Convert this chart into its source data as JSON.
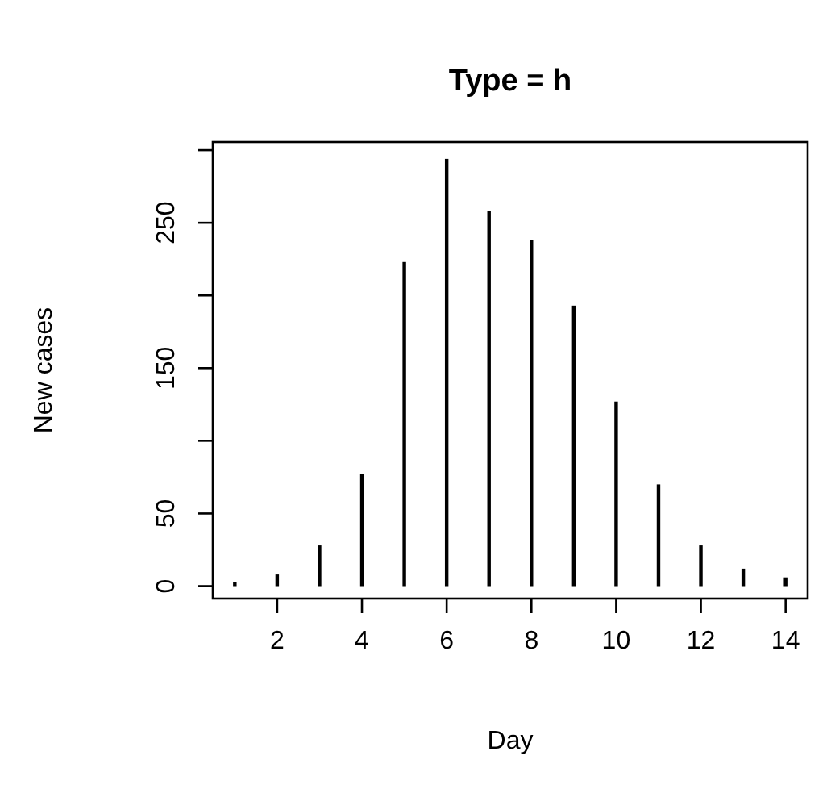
{
  "chart_data": {
    "type": "bar",
    "title": "Type = h",
    "xlabel": "Day",
    "ylabel": "New cases",
    "color": "#000000",
    "x": [
      1,
      2,
      3,
      4,
      5,
      6,
      7,
      8,
      9,
      10,
      11,
      12,
      13,
      14
    ],
    "values": [
      3,
      8,
      28,
      77,
      223,
      294,
      258,
      238,
      193,
      127,
      70,
      28,
      12,
      6
    ],
    "xlim": [
      0.48,
      14.52
    ],
    "xticks": [
      2,
      4,
      6,
      8,
      10,
      12,
      14
    ],
    "ylim": [
      -8.6,
      305.6
    ],
    "yticks": [
      0,
      50,
      {
        "value": 100,
        "label": null
      },
      150,
      {
        "value": 200,
        "label": null
      },
      250,
      {
        "value": 300,
        "label": null
      }
    ],
    "grid": false
  }
}
